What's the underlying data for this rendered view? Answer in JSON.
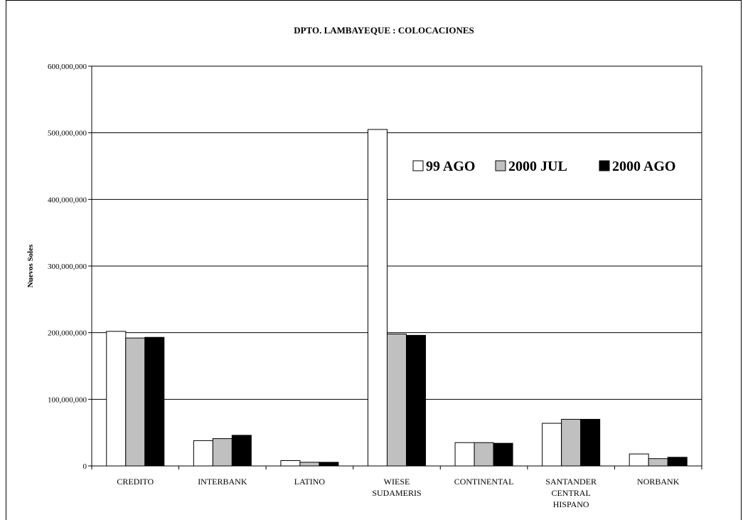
{
  "chart_data": {
    "type": "bar",
    "title": "DPTO.  LAMBAYEQUE :   COLOCACIONES",
    "ylabel": "Nuevos Soles",
    "xlabel": "",
    "ylim": [
      0,
      600000000
    ],
    "yticks": [
      "0",
      "100,000,000",
      "200,000,000",
      "300,000,000",
      "400,000,000",
      "500,000,000",
      "600,000,000"
    ],
    "grid": true,
    "legend_position": "top-right",
    "categories": [
      [
        "CREDITO"
      ],
      [
        "INTERBANK"
      ],
      [
        "LATINO"
      ],
      [
        "WIESE",
        "SUDAMERIS"
      ],
      [
        "CONTINENTAL"
      ],
      [
        "SANTANDER",
        "CENTRAL",
        "HISPANO"
      ],
      [
        "NORBANK"
      ]
    ],
    "series": [
      {
        "name": "99 AGO",
        "color": "#ffffff",
        "values": [
          202000000,
          38000000,
          8000000,
          505000000,
          35000000,
          64000000,
          18000000
        ]
      },
      {
        "name": "2000 JUL",
        "color": "#c0c0c0",
        "values": [
          192000000,
          41000000,
          5500000,
          198000000,
          35000000,
          70000000,
          11000000
        ]
      },
      {
        "name": "2000 AGO",
        "color": "#000000",
        "values": [
          193000000,
          46000000,
          5500000,
          196000000,
          34000000,
          70000000,
          13000000
        ]
      }
    ]
  }
}
